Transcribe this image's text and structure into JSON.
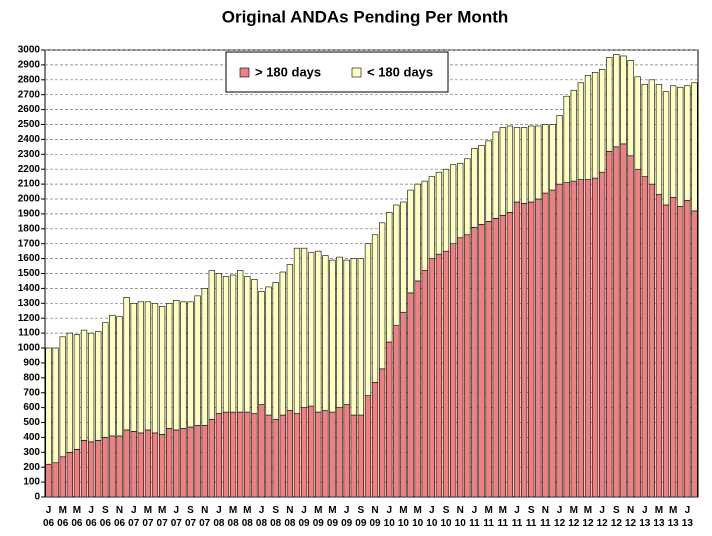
{
  "chart_data": {
    "type": "stacked_bar",
    "title": "Original ANDAs Pending Per Month",
    "categories": [
      "J 06",
      null,
      "M 06",
      null,
      "M 06",
      null,
      "J 06",
      null,
      "S 06",
      null,
      "N 06",
      null,
      "J 07",
      null,
      "M 07",
      null,
      "M 07",
      null,
      "J 07",
      null,
      "S 07",
      null,
      "N 07",
      null,
      "J 08",
      null,
      "M 08",
      null,
      "M 08",
      null,
      "J 08",
      null,
      "S 08",
      null,
      "N 08",
      null,
      "J 09",
      null,
      "M 09",
      null,
      "M 09",
      null,
      "J 09",
      null,
      "S 09",
      null,
      "N 09",
      null,
      "J 10",
      null,
      "M 10",
      null,
      "M 10",
      null,
      "J 10",
      null,
      "S 10",
      null,
      "N 10",
      null,
      "J 11",
      null,
      "M 11",
      null,
      "M 11",
      null,
      "J 11",
      null,
      "S 11",
      null,
      "N 11",
      null,
      "J 12",
      null,
      "M 12",
      null,
      "M 12",
      null,
      "J 12",
      null,
      "S 12",
      null,
      "N 12",
      null,
      "J 13",
      null,
      "M 13",
      null,
      "M 13",
      null,
      "J 13",
      null
    ],
    "series": [
      {
        "name": "> 180 days",
        "color": "#f08080",
        "values": [
          220,
          230,
          270,
          300,
          320,
          380,
          370,
          380,
          400,
          410,
          410,
          450,
          440,
          430,
          450,
          430,
          420,
          460,
          450,
          460,
          470,
          480,
          480,
          520,
          560,
          570,
          570,
          570,
          570,
          560,
          620,
          550,
          520,
          550,
          580,
          560,
          600,
          610,
          570,
          580,
          570,
          600,
          620,
          550,
          550,
          680,
          770,
          860,
          1040,
          1150,
          1240,
          1370,
          1450,
          1520,
          1600,
          1630,
          1650,
          1700,
          1740,
          1760,
          1810,
          1830,
          1850,
          1870,
          1890,
          1910,
          1980,
          1970,
          1980,
          2000,
          2040,
          2060,
          2100,
          2110,
          2120,
          2130,
          2130,
          2140,
          2180,
          2320,
          2350,
          2370,
          2290,
          2200,
          2150,
          2100,
          2030,
          1960,
          2010,
          1950,
          1990,
          1920
        ]
      },
      {
        "name": "< 180 days",
        "color": "#ffffc0",
        "values": [
          780,
          770,
          805,
          800,
          770,
          740,
          730,
          730,
          770,
          810,
          800,
          890,
          860,
          880,
          860,
          870,
          860,
          840,
          870,
          850,
          840,
          870,
          920,
          1000,
          940,
          910,
          920,
          950,
          910,
          900,
          760,
          860,
          920,
          960,
          980,
          1110,
          1070,
          1030,
          1080,
          1040,
          1020,
          1010,
          970,
          1050,
          1050,
          1020,
          990,
          980,
          870,
          810,
          740,
          690,
          650,
          600,
          550,
          550,
          550,
          530,
          500,
          510,
          530,
          530,
          540,
          580,
          590,
          580,
          500,
          510,
          510,
          490,
          460,
          440,
          460,
          580,
          610,
          650,
          700,
          710,
          690,
          630,
          620,
          590,
          640,
          620,
          620,
          700,
          740,
          760,
          750,
          800,
          770,
          860
        ]
      }
    ],
    "ylim": [
      0,
      3000
    ],
    "yticks": [
      0,
      100,
      200,
      300,
      400,
      500,
      600,
      700,
      800,
      900,
      1000,
      1100,
      1200,
      1300,
      1400,
      1500,
      1600,
      1700,
      1800,
      1900,
      2000,
      2100,
      2200,
      2300,
      2400,
      2500,
      2600,
      2700,
      2800,
      2900,
      3000
    ],
    "grid": true,
    "legend": "top"
  }
}
